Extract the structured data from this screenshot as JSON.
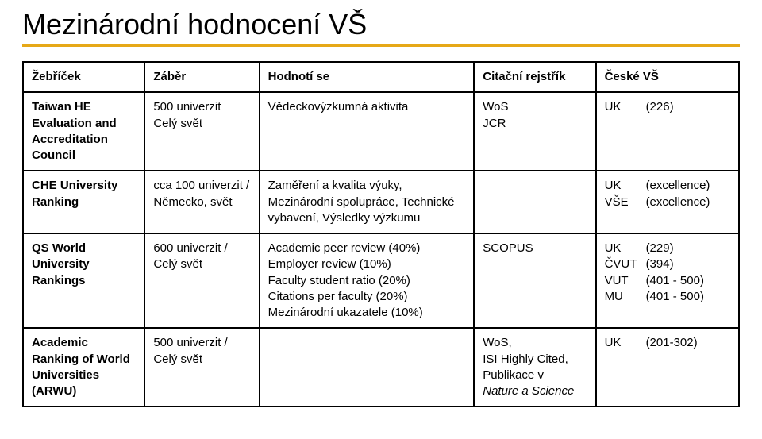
{
  "title": "Mezinárodní hodnocení VŠ",
  "accent_color": "#e6a817",
  "text_color": "#000000",
  "background_color": "#ffffff",
  "table": {
    "columns": [
      {
        "label": "Žebříček",
        "width": "17%"
      },
      {
        "label": "Záběr",
        "width": "16%"
      },
      {
        "label": "Hodnotí se",
        "width": "30%"
      },
      {
        "label": "Citační rejstřík",
        "width": "17%"
      },
      {
        "label": "České VŠ",
        "width": "20%"
      }
    ],
    "rows": [
      {
        "ranking_bold": "Taiwan HE Evaluation and Accreditation Council",
        "scope": "500 univerzit\nCelý svět",
        "evaluates": "Vědeckovýzkumná aktivita",
        "citation": "WoS\nJCR",
        "cz_ranks": [
          {
            "name": "UK",
            "value": "(226)"
          }
        ]
      },
      {
        "ranking_bold": "CHE University Ranking",
        "scope": "cca 100 univerzit / Německo, svět",
        "evaluates": "Zaměření a kvalita výuky, Mezinárodní spolupráce, Technické vybavení, Výsledky výzkumu",
        "citation": "",
        "cz_ranks": [
          {
            "name": "UK",
            "value": "(excellence)"
          },
          {
            "name": "VŠE",
            "value": "(excellence)"
          }
        ]
      },
      {
        "ranking_bold": "QS World University Rankings",
        "scope": "600 univerzit / Celý svět",
        "evaluates": "Academic peer review (40%)\nEmployer review (10%)\nFaculty student ratio (20%)\nCitations per faculty (20%)\nMezinárodní ukazatele (10%)",
        "citation": "SCOPUS",
        "cz_ranks": [
          {
            "name": "UK",
            "value": "(229)"
          },
          {
            "name": "ČVUT",
            "value": "(394)"
          },
          {
            "name": "VUT",
            "value": "(401 - 500)"
          },
          {
            "name": "MU",
            "value": "(401 - 500)"
          }
        ]
      },
      {
        "ranking_bold": "Academic Ranking of World Universities (ARWU)",
        "scope": "500 univerzit / Celý svět",
        "evaluates": "",
        "citation_lines": [
          "WoS,",
          "ISI Highly Cited,",
          "Publikace v"
        ],
        "citation_italic": "Nature a Science",
        "cz_ranks": [
          {
            "name": "UK",
            "value": "(201-302)"
          }
        ]
      }
    ]
  }
}
